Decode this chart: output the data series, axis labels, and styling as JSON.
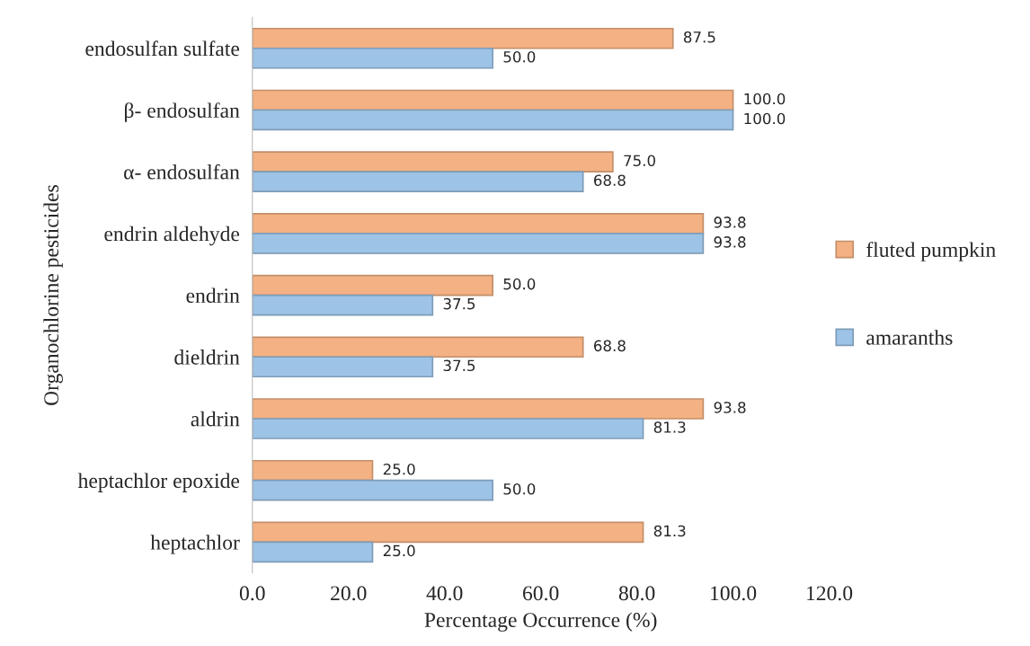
{
  "chart_data": {
    "type": "bar",
    "orientation": "horizontal",
    "xlabel": "Percentage Occurrence (%)",
    "ylabel": "Organochlorine pesticides",
    "categories": [
      "endosulfan sulfate",
      "β- endosulfan",
      "α- endosulfan",
      "endrin aldehyde",
      "endrin",
      "dieldrin",
      "aldrin",
      "heptachlor epoxide",
      "heptachlor"
    ],
    "series": [
      {
        "name": "fluted pumpkin",
        "color": "#f4b183",
        "values": [
          87.5,
          100.0,
          75.0,
          93.8,
          50.0,
          68.8,
          93.8,
          25.0,
          81.3
        ],
        "value_labels": [
          "87.5",
          "100.0",
          "75.0",
          "93.8",
          "50.0",
          "68.8",
          "93.8",
          "25.0",
          "81.3"
        ]
      },
      {
        "name": "amaranths",
        "color": "#9dc3e6",
        "values": [
          50.0,
          100.0,
          68.8,
          93.8,
          37.5,
          37.5,
          81.3,
          50.0,
          25.0
        ],
        "value_labels": [
          "50.0",
          "100.0",
          "68.8",
          "93.8",
          "37.5",
          "37.5",
          "81.3",
          "50.0",
          "25.0"
        ]
      }
    ],
    "xlim": [
      0,
      120
    ],
    "xticks": [
      {
        "value": 0,
        "label": "0.0"
      },
      {
        "value": 20,
        "label": "20.0"
      },
      {
        "value": 40,
        "label": "40.0"
      },
      {
        "value": 60,
        "label": "60.0"
      },
      {
        "value": 80,
        "label": "80.0"
      },
      {
        "value": 100,
        "label": "100.0"
      },
      {
        "value": 120,
        "label": "120.0"
      }
    ],
    "grid": false,
    "legend": "right"
  }
}
